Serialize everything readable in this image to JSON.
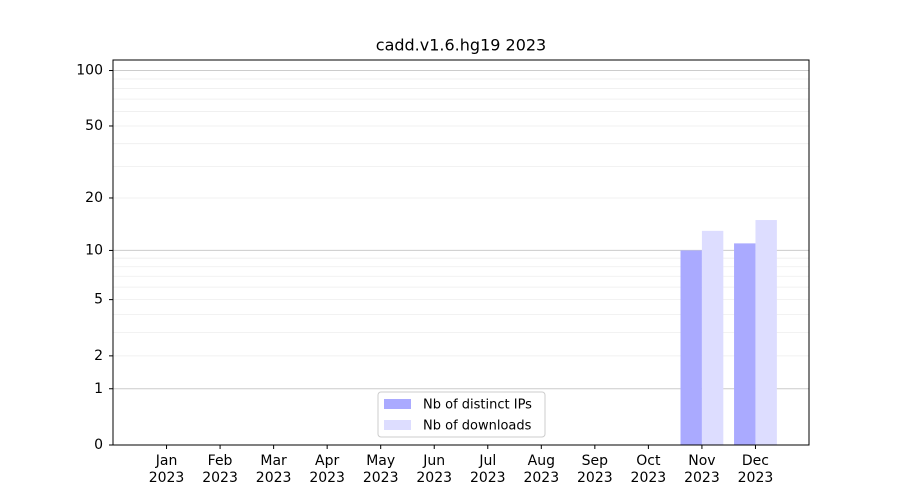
{
  "chart_data": {
    "type": "bar",
    "title": "cadd.v1.6.hg19 2023",
    "categories": [
      "Jan\n2023",
      "Feb\n2023",
      "Mar\n2023",
      "Apr\n2023",
      "May\n2023",
      "Jun\n2023",
      "Jul\n2023",
      "Aug\n2023",
      "Sep\n2023",
      "Oct\n2023",
      "Nov\n2023",
      "Dec\n2023"
    ],
    "series": [
      {
        "name": "Nb of distinct IPs",
        "color": "#aaaaff",
        "values": [
          0,
          0,
          0,
          0,
          0,
          0,
          0,
          0,
          0,
          0,
          10,
          11
        ]
      },
      {
        "name": "Nb of downloads",
        "color": "#ddddff",
        "values": [
          0,
          0,
          0,
          0,
          0,
          0,
          0,
          0,
          0,
          0,
          13,
          15
        ]
      }
    ],
    "yscale": "log1p",
    "ylim": [
      0,
      114
    ],
    "yticks": [
      0,
      1,
      2,
      5,
      10,
      20,
      50,
      100
    ],
    "yminor_ticks": [
      3,
      4,
      6,
      7,
      8,
      9,
      30,
      40,
      60,
      70,
      80,
      90
    ],
    "grid": true,
    "legend": "lower center"
  }
}
